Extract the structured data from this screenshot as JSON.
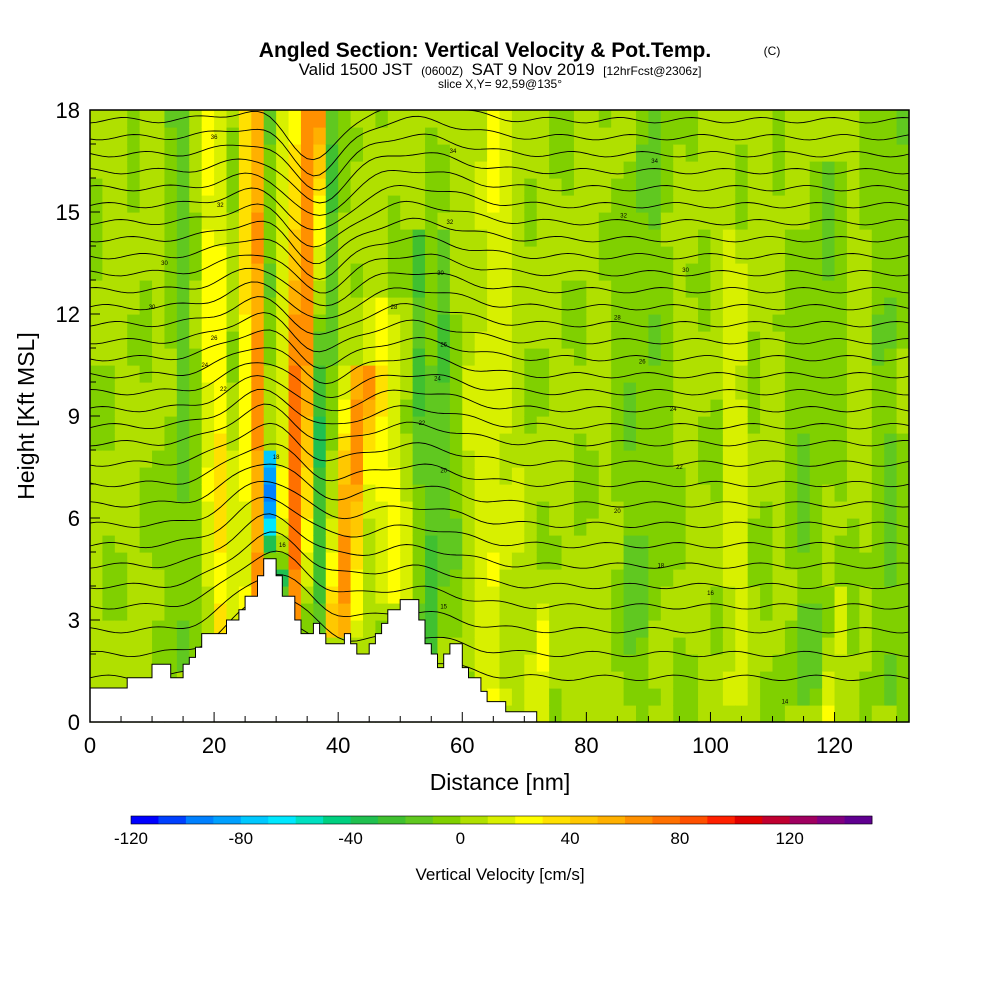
{
  "chart_data": {
    "type": "heatmap",
    "title": "Angled Section: Vertical Velocity & Pot.Temp.",
    "title_units": "(C)",
    "subtitle": {
      "prefix": "Valid 1500 JST",
      "zulu": "(0600Z)",
      "date": "SAT 9 Nov 2019",
      "forecast": "[12hrFcst@2306z]"
    },
    "slice_label": "slice X,Y= 92,59@135°",
    "xlabel": "Distance [nm]",
    "ylabel": "Height [Kft MSL]",
    "xlim": [
      0,
      132
    ],
    "ylim": [
      0,
      18
    ],
    "xticks": [
      0,
      20,
      40,
      60,
      80,
      100,
      120
    ],
    "yticks": [
      0,
      3,
      6,
      9,
      12,
      15,
      18
    ],
    "colorbar": {
      "title": "Vertical Velocity [cm/s]",
      "range": [
        -120,
        150
      ],
      "ticks": [
        -120,
        -80,
        -40,
        0,
        40,
        80,
        120
      ],
      "colors": [
        "#0000ff",
        "#0040ff",
        "#0080ff",
        "#00a0ff",
        "#00c8ff",
        "#00e8ff",
        "#00e0c0",
        "#00d080",
        "#20c050",
        "#40c030",
        "#60c820",
        "#80d000",
        "#b0e000",
        "#d8f000",
        "#ffff00",
        "#ffe000",
        "#ffc800",
        "#ffb000",
        "#ff9000",
        "#ff7000",
        "#ff5000",
        "#ff2000",
        "#e00000",
        "#c00030",
        "#a00060",
        "#800080",
        "#600090"
      ]
    },
    "terrain": [
      [
        0,
        1
      ],
      [
        6,
        1
      ],
      [
        6,
        1.3
      ],
      [
        10,
        1.3
      ],
      [
        10,
        1.7
      ],
      [
        13,
        1.7
      ],
      [
        13,
        1.3
      ],
      [
        15,
        1.3
      ],
      [
        15,
        1.7
      ],
      [
        16,
        1.7
      ],
      [
        16,
        1.9
      ],
      [
        17,
        1.9
      ],
      [
        17,
        2.2
      ],
      [
        18,
        2.2
      ],
      [
        18,
        2.6
      ],
      [
        22,
        2.6
      ],
      [
        22,
        3
      ],
      [
        24,
        3
      ],
      [
        24,
        3.3
      ],
      [
        25,
        3.3
      ],
      [
        25,
        3.7
      ],
      [
        27,
        3.7
      ],
      [
        27,
        4.3
      ],
      [
        28,
        4.3
      ],
      [
        28,
        4.8
      ],
      [
        30,
        4.8
      ],
      [
        30,
        4.3
      ],
      [
        31,
        4.3
      ],
      [
        31,
        3.7
      ],
      [
        33,
        3.7
      ],
      [
        33,
        3
      ],
      [
        34,
        3
      ],
      [
        34,
        2.6
      ],
      [
        36,
        2.6
      ],
      [
        36,
        2.9
      ],
      [
        37,
        2.9
      ],
      [
        37,
        2.6
      ],
      [
        38,
        2.6
      ],
      [
        38,
        2.3
      ],
      [
        41,
        2.3
      ],
      [
        41,
        2.6
      ],
      [
        42,
        2.6
      ],
      [
        42,
        2.3
      ],
      [
        43,
        2.3
      ],
      [
        43,
        2
      ],
      [
        45,
        2
      ],
      [
        45,
        2.3
      ],
      [
        46,
        2.3
      ],
      [
        46,
        2.6
      ],
      [
        47,
        2.6
      ],
      [
        47,
        2.9
      ],
      [
        48,
        2.9
      ],
      [
        48,
        3.3
      ],
      [
        50,
        3.3
      ],
      [
        50,
        3.6
      ],
      [
        53,
        3.6
      ],
      [
        53,
        3
      ],
      [
        54,
        3
      ],
      [
        54,
        2.3
      ],
      [
        55,
        2.3
      ],
      [
        55,
        2
      ],
      [
        56,
        2
      ],
      [
        56,
        1.6
      ],
      [
        57,
        1.6
      ],
      [
        57,
        2
      ],
      [
        58,
        2
      ],
      [
        58,
        2.3
      ],
      [
        60,
        2.3
      ],
      [
        60,
        1.6
      ],
      [
        61,
        1.6
      ],
      [
        61,
        1.3
      ],
      [
        63,
        1.3
      ],
      [
        63,
        0.9
      ],
      [
        64,
        0.9
      ],
      [
        64,
        0.6
      ],
      [
        67,
        0.6
      ],
      [
        67,
        0.3
      ],
      [
        72,
        0.3
      ],
      [
        72,
        0
      ],
      [
        132,
        0
      ]
    ],
    "updrafts": [
      {
        "x": 27,
        "y0": 3.5,
        "x1": 27,
        "y1": 18,
        "w": 3.0,
        "v": 60
      },
      {
        "x": 32,
        "y0": 3.0,
        "x1": 36,
        "y1": 18,
        "w": 2.6,
        "v": 70
      },
      {
        "x": 40,
        "y0": 3.0,
        "x1": 44,
        "y1": 10,
        "w": 2.2,
        "v": 60
      },
      {
        "x": 21,
        "y0": 3.0,
        "x1": 20,
        "y1": 18,
        "w": 2.4,
        "v": 25
      },
      {
        "x": 49,
        "y0": 4.0,
        "x1": 46,
        "y1": 12,
        "w": 3.0,
        "v": 20
      },
      {
        "x": 65,
        "y0": 1.0,
        "x1": 65,
        "y1": 18,
        "w": 3.0,
        "v": 15
      },
      {
        "x": 104,
        "y0": 1.0,
        "x1": 104,
        "y1": 14,
        "w": 1.5,
        "v": 15
      },
      {
        "x": 72,
        "y0": 0.6,
        "x1": 74,
        "y1": 4.0,
        "w": 1.0,
        "v": 20
      },
      {
        "x": 82,
        "y0": 0.4,
        "x1": 82,
        "y1": 3.0,
        "w": 1.0,
        "v": 15
      },
      {
        "x": 119,
        "y0": 0.4,
        "x1": 121,
        "y1": 3.5,
        "w": 1.0,
        "v": 15
      }
    ],
    "downdrafts": [
      {
        "x": 30,
        "y0": 4.5,
        "x1": 29,
        "y1": 18,
        "w": 1.3,
        "v": -50
      },
      {
        "x": 30.5,
        "y0": 4.0,
        "x1": 28.5,
        "y1": 7.5,
        "w": 1.0,
        "v": -110
      },
      {
        "x": 36,
        "y0": 3.0,
        "x1": 39,
        "y1": 18,
        "w": 1.5,
        "v": -40
      },
      {
        "x": 55,
        "y0": 2.5,
        "x1": 53,
        "y1": 14,
        "w": 1.5,
        "v": -30
      },
      {
        "x": 58,
        "y0": 3.0,
        "x1": 57,
        "y1": 14,
        "w": 1.2,
        "v": -20
      },
      {
        "x": 25,
        "y0": 3.0,
        "x1": 23,
        "y1": 18,
        "w": 2.0,
        "v": -20
      },
      {
        "x": 15,
        "y0": 2.0,
        "x1": 15,
        "y1": 18,
        "w": 2.5,
        "v": -15
      },
      {
        "x": 88,
        "y0": 1.0,
        "x1": 90,
        "y1": 18,
        "w": 4.0,
        "v": -12
      },
      {
        "x": 115,
        "y0": 1.0,
        "x1": 118,
        "y1": 16,
        "w": 4.0,
        "v": -12
      },
      {
        "x": 128,
        "y0": 1.0,
        "x1": 130,
        "y1": 18,
        "w": 3.0,
        "v": -12
      }
    ],
    "isentropes": {
      "levels": [
        1.3,
        2.0,
        2.7,
        3.4,
        4.0,
        4.6,
        5.2,
        5.8,
        6.4,
        7.0,
        7.6,
        8.2,
        8.7,
        9.2,
        9.7,
        10.2,
        10.7,
        11.2,
        11.7,
        12.2,
        12.7,
        13.2,
        13.7,
        14.2,
        14.7,
        15.2,
        15.7,
        16.2,
        16.7,
        17.2,
        17.7
      ],
      "wave_amplitude": 0.9
    },
    "contour_labels": [
      {
        "text": "36",
        "x": 20,
        "y": 17.2
      },
      {
        "text": "32",
        "x": 21,
        "y": 15.2
      },
      {
        "text": "30",
        "x": 12,
        "y": 13.5
      },
      {
        "text": "30",
        "x": 10,
        "y": 12.2
      },
      {
        "text": "26",
        "x": 20,
        "y": 11.3
      },
      {
        "text": "24",
        "x": 18.5,
        "y": 10.5
      },
      {
        "text": "22",
        "x": 21.5,
        "y": 9.8
      },
      {
        "text": "34",
        "x": 58.5,
        "y": 16.8
      },
      {
        "text": "34",
        "x": 91,
        "y": 16.5
      },
      {
        "text": "32",
        "x": 58,
        "y": 14.7
      },
      {
        "text": "32",
        "x": 86,
        "y": 14.9
      },
      {
        "text": "30",
        "x": 56.5,
        "y": 13.2
      },
      {
        "text": "30",
        "x": 96,
        "y": 13.3
      },
      {
        "text": "28",
        "x": 49,
        "y": 12.2
      },
      {
        "text": "28",
        "x": 85,
        "y": 11.9
      },
      {
        "text": "26",
        "x": 57,
        "y": 11.1
      },
      {
        "text": "26",
        "x": 89,
        "y": 10.6
      },
      {
        "text": "24",
        "x": 56,
        "y": 10.1
      },
      {
        "text": "24",
        "x": 94,
        "y": 9.2
      },
      {
        "text": "22",
        "x": 53.5,
        "y": 8.8
      },
      {
        "text": "22",
        "x": 95,
        "y": 7.5
      },
      {
        "text": "20",
        "x": 57,
        "y": 7.4
      },
      {
        "text": "20",
        "x": 85,
        "y": 6.2
      },
      {
        "text": "18",
        "x": 30,
        "y": 7.8
      },
      {
        "text": "18",
        "x": 92,
        "y": 4.6
      },
      {
        "text": "16",
        "x": 100,
        "y": 3.8
      },
      {
        "text": "16",
        "x": 31,
        "y": 5.2
      },
      {
        "text": "15",
        "x": 57,
        "y": 3.4
      },
      {
        "text": "14",
        "x": 112,
        "y": 0.6
      }
    ]
  }
}
